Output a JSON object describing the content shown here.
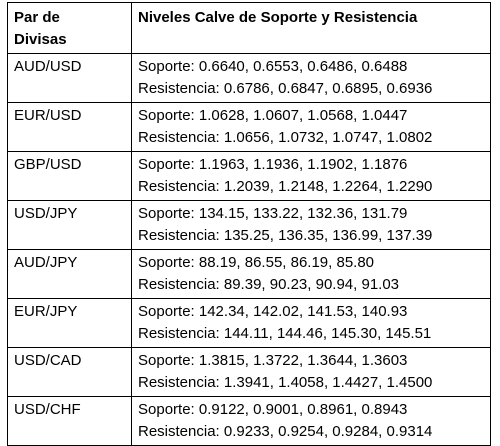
{
  "table": {
    "header": {
      "col1_line1": "Par de",
      "col1_line2": "Divisas",
      "col2": "Niveles Calve de Soporte y Resistencia"
    },
    "rows": [
      {
        "pair": "AUD/USD",
        "soporte": "Soporte: 0.6640, 0.6553, 0.6486, 0.6488",
        "resistencia": "Resistencia: 0.6786, 0.6847, 0.6895, 0.6936"
      },
      {
        "pair": "EUR/USD",
        "soporte": "Soporte: 1.0628, 1.0607, 1.0568, 1.0447",
        "resistencia": "Resistencia: 1.0656, 1.0732, 1.0747, 1.0802"
      },
      {
        "pair": "GBP/USD",
        "soporte": "Soporte: 1.1963, 1.1936, 1.1902, 1.1876",
        "resistencia": "Resistencia: 1.2039, 1.2148, 1.2264, 1.2290"
      },
      {
        "pair": "USD/JPY",
        "soporte": "Soporte: 134.15, 133.22, 132.36, 131.79",
        "resistencia": "Resistencia: 135.25, 136.35, 136.99, 137.39"
      },
      {
        "pair": "AUD/JPY",
        "soporte": "Soporte: 88.19, 86.55, 86.19, 85.80",
        "resistencia": "Resistencia: 89.39, 90.23, 90.94, 91.03"
      },
      {
        "pair": "EUR/JPY",
        "soporte": "Soporte: 142.34, 142.02, 141.53, 140.93",
        "resistencia": "Resistencia: 144.11, 144.46, 145.30, 145.51"
      },
      {
        "pair": "USD/CAD",
        "soporte": "Soporte: 1.3815, 1.3722, 1.3644, 1.3603",
        "resistencia": "Resistencia: 1.3941, 1.4058, 1.4427, 1.4500"
      },
      {
        "pair": "USD/CHF",
        "soporte": "Soporte: 0.9122, 0.9001, 0.8961, 0.8943",
        "resistencia": "Resistencia: 0.9233, 0.9254, 0.9284, 0.9314"
      }
    ]
  }
}
